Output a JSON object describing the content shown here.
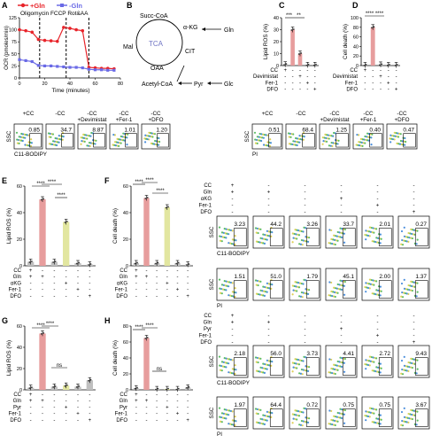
{
  "panels": {
    "A": {
      "label": "A",
      "title": "Oligomycin FCCP  Rot&AA",
      "legend": [
        "+Gln",
        "-Gln"
      ],
      "ylabel": "OCR (pmoles/min)",
      "xlabel": "Time (minutes)",
      "yticks": [
        "0",
        "25",
        "50",
        "75",
        "100",
        "125"
      ],
      "xticks": [
        "0",
        "20",
        "40",
        "60",
        "80"
      ]
    },
    "B": {
      "label": "B",
      "nodes": [
        "Succ-CoA",
        "TCA",
        "α-KG",
        "Gln",
        "CIT",
        "Mal",
        "OAA",
        "Acetyl-CoA",
        "Pyr",
        "Glc"
      ]
    },
    "C": {
      "label": "C",
      "ylabel": "Lipid ROS (%)",
      "yticks": [
        "0",
        "10",
        "20",
        "30",
        "40"
      ],
      "stars": [
        "***",
        "**"
      ],
      "rows": [
        {
          "name": "CC",
          "vals": [
            "+",
            "-",
            "-",
            "-",
            "-"
          ]
        },
        {
          "name": "Devimistat",
          "vals": [
            "-",
            "-",
            "+",
            "-",
            "-"
          ]
        },
        {
          "name": "Fer-1",
          "vals": [
            "-",
            "-",
            "-",
            "+",
            "-"
          ]
        },
        {
          "name": "DFO",
          "vals": [
            "-",
            "-",
            "-",
            "-",
            "+"
          ]
        }
      ]
    },
    "D": {
      "label": "D",
      "ylabel": "Cell death (%)",
      "yticks": [
        "0",
        "20",
        "40",
        "60",
        "80",
        "100"
      ],
      "stars": [
        "**** ****"
      ],
      "rows": [
        {
          "name": "CC",
          "vals": [
            "+",
            "-",
            "-",
            "-",
            "-"
          ]
        },
        {
          "name": "Devimistat",
          "vals": [
            "-",
            "-",
            "+",
            "-",
            "-"
          ]
        },
        {
          "name": "Fer-1",
          "vals": [
            "-",
            "-",
            "-",
            "+",
            "-"
          ]
        },
        {
          "name": "DFO",
          "vals": [
            "-",
            "-",
            "-",
            "-",
            "+"
          ]
        }
      ]
    },
    "E": {
      "label": "E",
      "ylabel": "Lipid ROS (%)",
      "yticks": [
        "0",
        "20",
        "40",
        "60"
      ],
      "stars": [
        "****",
        "****",
        "****"
      ],
      "rows": [
        {
          "name": "CC",
          "vals": [
            "+",
            "-",
            "-",
            "-",
            "-",
            "-"
          ]
        },
        {
          "name": "Gln",
          "vals": [
            "+",
            "+",
            "-",
            "-",
            "-",
            "-"
          ]
        },
        {
          "name": "αKG",
          "vals": [
            "-",
            "-",
            "-",
            "+",
            "-",
            "-"
          ]
        },
        {
          "name": "Fer-1",
          "vals": [
            "-",
            "-",
            "-",
            "-",
            "+",
            "-"
          ]
        },
        {
          "name": "DFO",
          "vals": [
            "-",
            "-",
            "-",
            "-",
            "-",
            "+"
          ]
        }
      ]
    },
    "F": {
      "label": "F",
      "ylabel": "Cell death (%)",
      "yticks": [
        "0",
        "20",
        "40",
        "60"
      ],
      "stars": [
        "****",
        "****",
        "****"
      ],
      "rows": [
        {
          "name": "CC",
          "vals": [
            "+",
            "-",
            "-",
            "-",
            "-",
            "-"
          ]
        },
        {
          "name": "Gln",
          "vals": [
            "+",
            "+",
            "-",
            "-",
            "-",
            "-"
          ]
        },
        {
          "name": "αKG",
          "vals": [
            "-",
            "-",
            "-",
            "+",
            "-",
            "-"
          ]
        },
        {
          "name": "Fer-1",
          "vals": [
            "-",
            "-",
            "-",
            "-",
            "+",
            "-"
          ]
        },
        {
          "name": "DFO",
          "vals": [
            "-",
            "-",
            "-",
            "-",
            "-",
            "+"
          ]
        }
      ]
    },
    "G": {
      "label": "G",
      "ylabel": "Lipid ROS (%)",
      "yticks": [
        "0",
        "20",
        "40",
        "60"
      ],
      "stars": [
        "****",
        "****"
      ],
      "ns": "ns",
      "rows": [
        {
          "name": "CC",
          "vals": [
            "+",
            "-",
            "-",
            "-",
            "-",
            "-"
          ]
        },
        {
          "name": "Gln",
          "vals": [
            "+",
            "+",
            "-",
            "-",
            "-",
            "-"
          ]
        },
        {
          "name": "Pyr",
          "vals": [
            "-",
            "-",
            "-",
            "+",
            "-",
            "-"
          ]
        },
        {
          "name": "Fer-1",
          "vals": [
            "-",
            "-",
            "-",
            "-",
            "+",
            "-"
          ]
        },
        {
          "name": "DFO",
          "vals": [
            "-",
            "-",
            "-",
            "-",
            "-",
            "+"
          ]
        }
      ]
    },
    "H": {
      "label": "H",
      "ylabel": "Cell death (%)",
      "yticks": [
        "0",
        "20",
        "40",
        "60",
        "80"
      ],
      "stars": [
        "****",
        "****"
      ],
      "ns": "ns",
      "rows": [
        {
          "name": "CC",
          "vals": [
            "+",
            "-",
            "-",
            "-",
            "-",
            "-"
          ]
        },
        {
          "name": "Gln",
          "vals": [
            "+",
            "+",
            "-",
            "-",
            "-",
            "-"
          ]
        },
        {
          "name": "Pyr",
          "vals": [
            "-",
            "-",
            "-",
            "+",
            "-",
            "-"
          ]
        },
        {
          "name": "Fer-1",
          "vals": [
            "-",
            "-",
            "-",
            "-",
            "+",
            "-"
          ]
        },
        {
          "name": "DFO",
          "vals": [
            "-",
            "-",
            "-",
            "-",
            "-",
            "+"
          ]
        }
      ]
    }
  },
  "flow_top_left": {
    "headers": [
      "+CC",
      "-CC",
      "-CC\n+Devimistat",
      "-CC\n+Fer-1",
      "-CC\n+DFO"
    ],
    "values": [
      "0.85",
      "34.7",
      "8.87",
      "1.01",
      "1.20"
    ],
    "ylabel": "SSC",
    "xlabel": "C11-BODIPY"
  },
  "flow_top_right": {
    "headers": [
      "+CC",
      "-CC",
      "-CC\n+Devimistat",
      "-CC\n+Fer-1",
      "-CC\n+DFO"
    ],
    "values": [
      "0.51",
      "68.4",
      "1.25",
      "0.40",
      "0.47"
    ],
    "ylabel": "SSC",
    "xlabel": "PI"
  },
  "flow_table1": {
    "rows": [
      {
        "name": "CC",
        "vals": [
          "+",
          "-",
          "-",
          "-",
          "-",
          "-"
        ]
      },
      {
        "name": "Gln",
        "vals": [
          "+",
          "+",
          "-",
          "-",
          "-",
          "-"
        ]
      },
      {
        "name": "αKG",
        "vals": [
          "-",
          "-",
          "-",
          "+",
          "-",
          "-"
        ]
      },
      {
        "name": "Fer-1",
        "vals": [
          "-",
          "-",
          "-",
          "-",
          "+",
          "-"
        ]
      },
      {
        "name": "DFO",
        "vals": [
          "-",
          "-",
          "-",
          "-",
          "-",
          "+"
        ]
      }
    ]
  },
  "flow_row1": {
    "values": [
      "3.23",
      "44.2",
      "3.26",
      "33.7",
      "2.01",
      "0.27"
    ],
    "xlabel": "C11-BODIPY",
    "ylabel": "SSC"
  },
  "flow_row2": {
    "values": [
      "1.51",
      "51.0",
      "1.79",
      "45.1",
      "2.00",
      "1.37"
    ],
    "xlabel": "PI",
    "ylabel": "SSC"
  },
  "flow_table2": {
    "rows": [
      {
        "name": "CC",
        "vals": [
          "+",
          "-",
          "-",
          "-",
          "-",
          "-"
        ]
      },
      {
        "name": "Gln",
        "vals": [
          "+",
          "+",
          "-",
          "-",
          "-",
          "-"
        ]
      },
      {
        "name": "Pyr",
        "vals": [
          "-",
          "-",
          "-",
          "+",
          "-",
          "-"
        ]
      },
      {
        "name": "Fer-1",
        "vals": [
          "-",
          "-",
          "-",
          "-",
          "+",
          "-"
        ]
      },
      {
        "name": "DFO",
        "vals": [
          "-",
          "-",
          "-",
          "-",
          "-",
          "+"
        ]
      }
    ]
  },
  "flow_row3": {
    "values": [
      "2.18",
      "56.0",
      "3.73",
      "4.41",
      "2.72",
      "9.43"
    ],
    "xlabel": "C11-BODIPY",
    "ylabel": "SSC"
  },
  "flow_row4": {
    "values": [
      "1.97",
      "64.4",
      "0.72",
      "0.75",
      "0.75",
      "3.67"
    ],
    "xlabel": "PI",
    "ylabel": "SSC"
  },
  "chart_data": [
    {
      "panel": "A",
      "type": "line",
      "x": [
        0,
        5,
        10,
        15,
        20,
        25,
        30,
        35,
        40,
        45,
        50,
        55,
        60,
        65,
        70,
        75
      ],
      "series": [
        {
          "name": "+Gln",
          "values": [
            100,
            98,
            95,
            80,
            78,
            77,
            76,
            105,
            103,
            100,
            98,
            22,
            21,
            20,
            20,
            19
          ]
        },
        {
          "name": "-Gln",
          "values": [
            38,
            36,
            34,
            26,
            25,
            25,
            24,
            23,
            22,
            22,
            21,
            18,
            17,
            17,
            16,
            16
          ]
        }
      ],
      "xlim": [
        0,
        80
      ],
      "ylim": [
        0,
        125
      ]
    },
    {
      "panel": "C",
      "type": "bar",
      "categories": [
        "1",
        "2",
        "3",
        "4",
        "5"
      ],
      "values": [
        1,
        30,
        10,
        0.5,
        0.5
      ],
      "ylim": [
        0,
        40
      ]
    },
    {
      "panel": "D",
      "type": "bar",
      "categories": [
        "1",
        "2",
        "3",
        "4",
        "5"
      ],
      "values": [
        1,
        80,
        2,
        1,
        1
      ],
      "ylim": [
        0,
        100
      ]
    },
    {
      "panel": "E",
      "type": "bar",
      "categories": [
        "1",
        "2",
        "3",
        "4",
        "5",
        "6"
      ],
      "values": [
        3,
        50,
        3,
        33,
        2,
        1
      ],
      "ylim": [
        0,
        60
      ]
    },
    {
      "panel": "F",
      "type": "bar",
      "categories": [
        "1",
        "2",
        "3",
        "4",
        "5",
        "6"
      ],
      "values": [
        2,
        51,
        2,
        44,
        2,
        1
      ],
      "ylim": [
        0,
        60
      ]
    },
    {
      "panel": "G",
      "type": "bar",
      "categories": [
        "1",
        "2",
        "3",
        "4",
        "5",
        "6"
      ],
      "values": [
        2,
        53,
        3,
        4,
        3,
        9
      ],
      "ylim": [
        0,
        60
      ]
    },
    {
      "panel": "H",
      "type": "bar",
      "categories": [
        "1",
        "2",
        "3",
        "4",
        "5",
        "6"
      ],
      "values": [
        2,
        65,
        1,
        1,
        1,
        3
      ],
      "ylim": [
        0,
        80
      ]
    }
  ],
  "colors": {
    "gln_pos": "#e8242a",
    "gln_neg": "#6a6ae6",
    "bar_red": "#e79d9d",
    "bar_yellow": "#e2e6a0",
    "bar_gray": "#bfbfbf",
    "tca": "#6f74c4"
  }
}
